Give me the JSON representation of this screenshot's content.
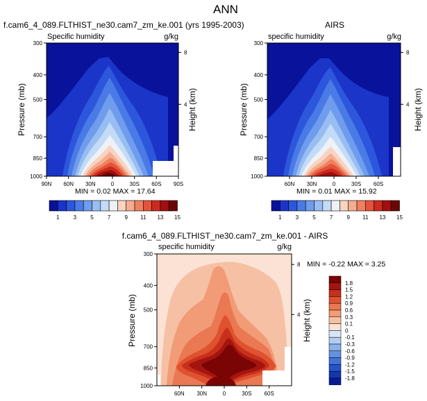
{
  "page_title": "ANN",
  "chart_data": [
    {
      "type": "contour-filled",
      "title": "f.cam6_4_089.FLTHIST_ne30.cam7_zm_ke.001 (yrs 1995-2003)",
      "left_label": "Specific humidity",
      "right_label": "g/kg",
      "ylabel": "Pressure (mb)",
      "ylabel_right": "Height (km)",
      "y_ticks": [
        "300",
        "400",
        "500",
        "700",
        "850",
        "1000"
      ],
      "y_ticks_right": [
        "8",
        "4"
      ],
      "x_ticks": [
        "90N",
        "60N",
        "30N",
        "0",
        "30S",
        "60S",
        "90S"
      ],
      "min_text": "MIN =  0.02  MAX =  17.64",
      "levels": [
        "1",
        "3",
        "5",
        "7",
        "9",
        "11",
        "13",
        "15"
      ],
      "min": 0.02,
      "max": 17.64
    },
    {
      "type": "contour-filled",
      "title": "AIRS",
      "left_label": "specific humidity",
      "right_label": "g/kg",
      "ylabel": "Pressure (mb)",
      "ylabel_right": "Height (km)",
      "y_ticks": [
        "300",
        "400",
        "500",
        "700",
        "850",
        "1000"
      ],
      "y_ticks_right": [
        "8",
        "4"
      ],
      "x_ticks": [
        "60N",
        "30N",
        "0",
        "30S",
        "60S"
      ],
      "min_text": "MIN =  0.01  MAX =  15.92",
      "levels": [
        "1",
        "3",
        "5",
        "7",
        "9",
        "11",
        "13",
        "15"
      ],
      "min": 0.01,
      "max": 15.92
    },
    {
      "type": "contour-filled",
      "title": "f.cam6_4_089.FLTHIST_ne30.cam7_zm_ke.001 - AIRS",
      "left_label": "specific humidity",
      "right_label": "g/kg",
      "ylabel": "Pressure (mb)",
      "ylabel_right": "Height (km)",
      "y_ticks": [
        "300",
        "400",
        "500",
        "700",
        "850",
        "1000"
      ],
      "y_ticks_right": [
        "8",
        "4"
      ],
      "x_ticks": [
        "60N",
        "30N",
        "0",
        "30S",
        "60S"
      ],
      "min_text": "MIN = -0.22  MAX =   3.25",
      "levels": [
        "1.8",
        "1.5",
        "1.2",
        "0.9",
        "0.6",
        "0.3",
        "0.1",
        "0",
        "-0.1",
        "-0.3",
        "-0.6",
        "-0.9",
        "-1.2",
        "-1.5",
        "-1.8"
      ],
      "min": -0.22,
      "max": 3.25
    }
  ],
  "colors": {
    "seq": [
      "#08129a",
      "#1a35c8",
      "#2c57dc",
      "#4a7ae6",
      "#6f9cec",
      "#98bdf2",
      "#c3dbf7",
      "#eef2f6",
      "#f8d3c1",
      "#f4ad8f",
      "#ee8160",
      "#e4533a",
      "#cb2a1d",
      "#a10f0f",
      "#6b0505"
    ],
    "div_pos": [
      "#fbe2d4",
      "#f6c0a4",
      "#f19c77",
      "#ea7852",
      "#e0512f",
      "#c7301b",
      "#a5150f",
      "#7b0404"
    ]
  }
}
